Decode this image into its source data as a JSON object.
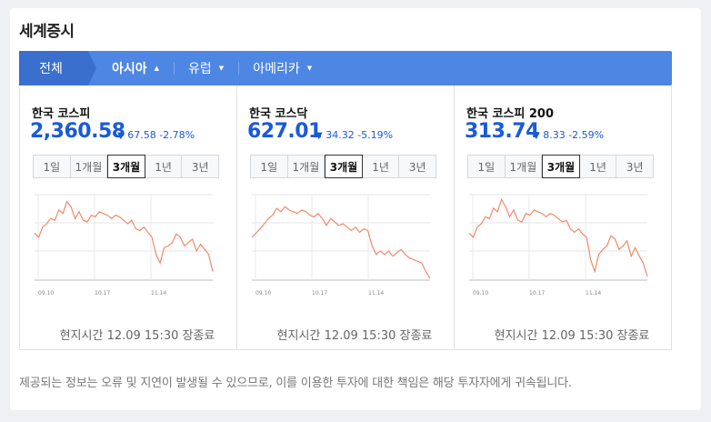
{
  "title": "세계증시",
  "tabs": [
    {
      "label": "전체"
    },
    {
      "label": "아시아",
      "active": true
    },
    {
      "label": "유럽"
    },
    {
      "label": "아메리카"
    }
  ],
  "period_options": [
    "1일",
    "1개월",
    "3개월",
    "1년",
    "3년"
  ],
  "selected_period": "3개월",
  "x_ticks": [
    "09.10",
    "10.17",
    "11.14"
  ],
  "cards": [
    {
      "name": "한국 코스피",
      "price": "2,360.58",
      "change": "67.58 -2.78%",
      "time": "현지시간 12.09 15:30 장종료"
    },
    {
      "name": "한국 코스닥",
      "price": "627.01",
      "change": "34.32 -5.19%",
      "time": "현지시간 12.09 15:30 장종료"
    },
    {
      "name": "한국 코스피 200",
      "price": "313.74",
      "change": "8.33 -2.59%",
      "time": "현지시간 12.09 15:30 장종료"
    }
  ],
  "chart_data": [
    {
      "type": "line",
      "title": "한국 코스피",
      "x_ticks": [
        "09.10",
        "10.17",
        "11.14"
      ],
      "values": [
        0.55,
        0.5,
        0.62,
        0.66,
        0.72,
        0.7,
        0.82,
        0.78,
        0.92,
        0.86,
        0.72,
        0.8,
        0.7,
        0.68,
        0.76,
        0.74,
        0.8,
        0.78,
        0.76,
        0.72,
        0.76,
        0.74,
        0.7,
        0.66,
        0.7,
        0.6,
        0.58,
        0.62,
        0.56,
        0.5,
        0.3,
        0.2,
        0.38,
        0.4,
        0.44,
        0.54,
        0.5,
        0.4,
        0.44,
        0.48,
        0.34,
        0.42,
        0.36,
        0.3,
        0.1
      ]
    },
    {
      "type": "line",
      "title": "한국 코스닥",
      "x_ticks": [
        "09.10",
        "10.17",
        "11.14"
      ],
      "values": [
        0.5,
        0.55,
        0.6,
        0.66,
        0.72,
        0.76,
        0.84,
        0.8,
        0.86,
        0.82,
        0.8,
        0.78,
        0.82,
        0.8,
        0.76,
        0.74,
        0.78,
        0.72,
        0.64,
        0.72,
        0.68,
        0.64,
        0.66,
        0.62,
        0.58,
        0.62,
        0.56,
        0.6,
        0.58,
        0.4,
        0.3,
        0.34,
        0.3,
        0.34,
        0.28,
        0.32,
        0.36,
        0.3,
        0.26,
        0.24,
        0.22,
        0.2,
        0.1,
        0.02
      ]
    },
    {
      "type": "line",
      "title": "한국 코스피 200",
      "x_ticks": [
        "09.10",
        "10.17",
        "11.14"
      ],
      "values": [
        0.55,
        0.5,
        0.62,
        0.66,
        0.74,
        0.72,
        0.84,
        0.8,
        0.94,
        0.86,
        0.74,
        0.82,
        0.7,
        0.68,
        0.78,
        0.76,
        0.82,
        0.8,
        0.78,
        0.74,
        0.78,
        0.76,
        0.72,
        0.68,
        0.7,
        0.6,
        0.56,
        0.6,
        0.54,
        0.5,
        0.24,
        0.1,
        0.3,
        0.36,
        0.4,
        0.52,
        0.48,
        0.36,
        0.4,
        0.46,
        0.28,
        0.38,
        0.28,
        0.2,
        0.04
      ]
    }
  ],
  "notice": "제공되는 정보는 오류 및 지연이 발생될 수 있으므로, 이를 이용한 투자에 대한 책임은 해당 투자자에게 귀속됩니다.",
  "colors": {
    "tab_bar": "#4e86e4",
    "tab_active_bg": "#3a6fce",
    "price_blue": "#1a5ad7",
    "line": "#f08a6a"
  }
}
